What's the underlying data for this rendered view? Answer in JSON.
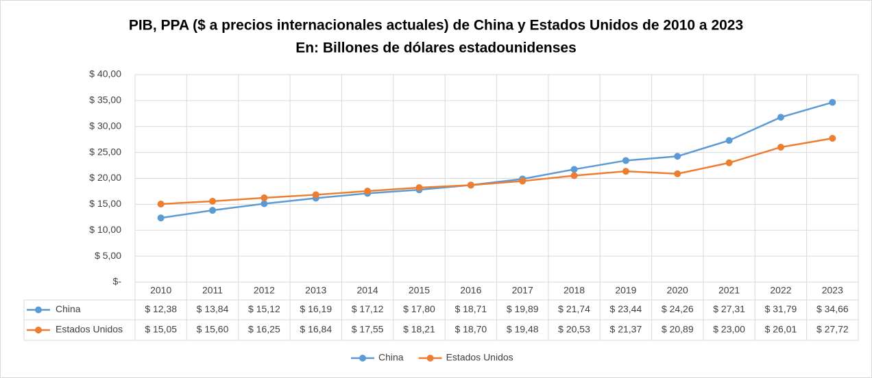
{
  "chart_data": {
    "type": "line",
    "title": "PIB, PPA ($ a precios internacionales actuales) de China y Estados Unidos de 2010 a 2023",
    "subtitle": "En: Billones de dólares estadounidenses",
    "categories": [
      "2010",
      "2011",
      "2012",
      "2013",
      "2014",
      "2015",
      "2016",
      "2017",
      "2018",
      "2019",
      "2020",
      "2021",
      "2022",
      "2023"
    ],
    "series": [
      {
        "name": "China",
        "color": "#5b9bd5",
        "values": [
          12.38,
          13.84,
          15.12,
          16.19,
          17.12,
          17.8,
          18.71,
          19.89,
          21.74,
          23.44,
          24.26,
          27.31,
          31.79,
          34.66
        ],
        "value_labels": [
          "$ 12,38",
          "$ 13,84",
          "$ 15,12",
          "$ 16,19",
          "$ 17,12",
          "$ 17,80",
          "$ 18,71",
          "$ 19,89",
          "$ 21,74",
          "$ 23,44",
          "$ 24,26",
          "$ 27,31",
          "$ 31,79",
          "$ 34,66"
        ]
      },
      {
        "name": "Estados Unidos",
        "color": "#ed7d31",
        "values": [
          15.05,
          15.6,
          16.25,
          16.84,
          17.55,
          18.21,
          18.7,
          19.48,
          20.53,
          21.37,
          20.89,
          23.0,
          26.01,
          27.72
        ],
        "value_labels": [
          "$ 15,05",
          "$ 15,60",
          "$ 16,25",
          "$ 16,84",
          "$ 17,55",
          "$ 18,21",
          "$ 18,70",
          "$ 19,48",
          "$ 20,53",
          "$ 21,37",
          "$ 20,89",
          "$ 23,00",
          "$ 26,01",
          "$ 27,72"
        ]
      }
    ],
    "ylim": [
      0,
      40
    ],
    "yticks": [
      {
        "value": 0,
        "label": "$-"
      },
      {
        "value": 5,
        "label": "$ 5,00"
      },
      {
        "value": 10,
        "label": "$ 10,00"
      },
      {
        "value": 15,
        "label": "$ 15,00"
      },
      {
        "value": 20,
        "label": "$ 20,00"
      },
      {
        "value": 25,
        "label": "$ 25,00"
      },
      {
        "value": 30,
        "label": "$ 30,00"
      },
      {
        "value": 35,
        "label": "$ 35,00"
      },
      {
        "value": 40,
        "label": "$ 40,00"
      }
    ],
    "grid": true,
    "legend": "bottom"
  }
}
